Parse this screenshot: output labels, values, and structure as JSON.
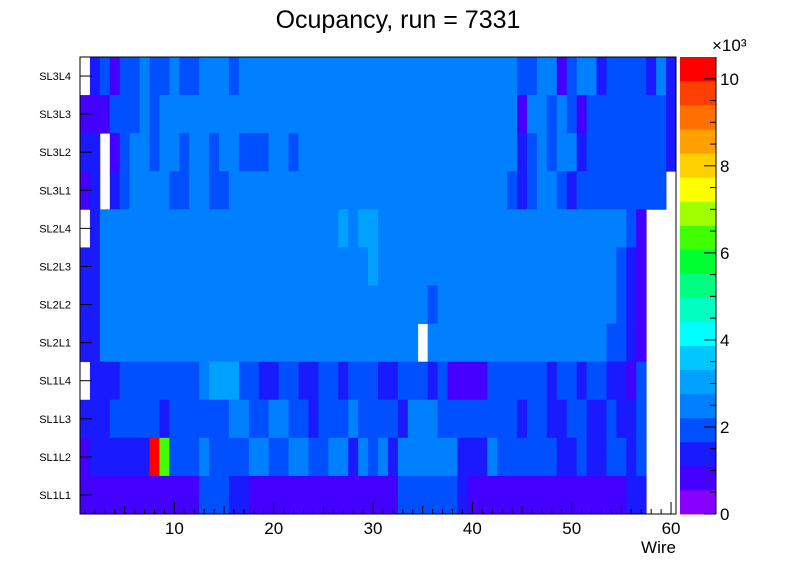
{
  "chart_data": {
    "type": "heatmap",
    "title": "Ocupancy, run = 7331",
    "xlabel": "Wire",
    "ylabel": "",
    "xlim": [
      0.5,
      60.5
    ],
    "x_ticks": [
      "10",
      "20",
      "30",
      "40",
      "50",
      "60"
    ],
    "y_categories": [
      "SL1L1",
      "SL1L2",
      "SL1L3",
      "SL1L4",
      "SL2L1",
      "SL2L2",
      "SL2L3",
      "SL2L4",
      "SL3L1",
      "SL3L2",
      "SL3L3",
      "SL3L4"
    ],
    "z_range": [
      0,
      10500
    ],
    "colorbar_ticks": [
      "0",
      "2",
      "4",
      "6",
      "8",
      "10"
    ],
    "colorbar_exponent": "×10³",
    "palette": [
      "#8800ff",
      "#4400ff",
      "#1a1aff",
      "#0050ff",
      "#0080ff",
      "#00a0ff",
      "#00c8ff",
      "#00ffff",
      "#00ffc0",
      "#00ff80",
      "#00ff30",
      "#40ff00",
      "#a0ff00",
      "#ffff00",
      "#ffd000",
      "#ffa000",
      "#ff7000",
      "#ff4000",
      "#ff0000"
    ],
    "rows": [
      {
        "label": "SL3L4",
        "runs": [
          [
            1,
            1,
            null
          ],
          [
            2,
            2,
            1200
          ],
          [
            3,
            3,
            1800
          ],
          [
            4,
            4,
            900
          ],
          [
            5,
            6,
            2000
          ],
          [
            7,
            7,
            2500
          ],
          [
            8,
            9,
            2000
          ],
          [
            10,
            10,
            2500
          ],
          [
            11,
            12,
            2000
          ],
          [
            13,
            15,
            2500
          ],
          [
            16,
            16,
            2000
          ],
          [
            17,
            44,
            2500
          ],
          [
            45,
            46,
            2000
          ],
          [
            47,
            48,
            2500
          ],
          [
            49,
            49,
            900
          ],
          [
            50,
            50,
            2000
          ],
          [
            51,
            52,
            2500
          ],
          [
            53,
            53,
            1500
          ],
          [
            54,
            57,
            2000
          ],
          [
            58,
            58,
            1500
          ],
          [
            59,
            59,
            2500
          ],
          [
            60,
            60,
            1200
          ]
        ]
      },
      {
        "label": "SL3L3",
        "runs": [
          [
            1,
            2,
            900
          ],
          [
            3,
            3,
            600
          ],
          [
            4,
            6,
            2000
          ],
          [
            7,
            7,
            2500
          ],
          [
            8,
            8,
            2000
          ],
          [
            9,
            44,
            2500
          ],
          [
            45,
            45,
            900
          ],
          [
            46,
            47,
            2500
          ],
          [
            48,
            48,
            2000
          ],
          [
            49,
            49,
            2500
          ],
          [
            50,
            50,
            2000
          ],
          [
            51,
            51,
            900
          ],
          [
            52,
            59,
            2000
          ],
          [
            60,
            60,
            1200
          ]
        ]
      },
      {
        "label": "SL3L2",
        "runs": [
          [
            1,
            1,
            1200
          ],
          [
            2,
            2,
            1500
          ],
          [
            3,
            3,
            null
          ],
          [
            4,
            4,
            900
          ],
          [
            5,
            5,
            2000
          ],
          [
            6,
            7,
            2500
          ],
          [
            8,
            8,
            2000
          ],
          [
            9,
            10,
            2500
          ],
          [
            11,
            11,
            2000
          ],
          [
            12,
            13,
            2500
          ],
          [
            14,
            14,
            2000
          ],
          [
            15,
            16,
            2500
          ],
          [
            17,
            19,
            2000
          ],
          [
            20,
            21,
            2500
          ],
          [
            22,
            22,
            2000
          ],
          [
            23,
            44,
            2500
          ],
          [
            45,
            45,
            1200
          ],
          [
            46,
            46,
            2000
          ],
          [
            47,
            47,
            2500
          ],
          [
            48,
            48,
            2000
          ],
          [
            49,
            50,
            2500
          ],
          [
            51,
            51,
            1500
          ],
          [
            52,
            59,
            2000
          ],
          [
            60,
            60,
            1200
          ]
        ]
      },
      {
        "label": "SL3L1",
        "runs": [
          [
            1,
            1,
            900
          ],
          [
            2,
            2,
            1500
          ],
          [
            3,
            3,
            null
          ],
          [
            4,
            4,
            1200
          ],
          [
            5,
            5,
            2000
          ],
          [
            6,
            9,
            2500
          ],
          [
            10,
            11,
            2000
          ],
          [
            12,
            13,
            2500
          ],
          [
            14,
            15,
            2000
          ],
          [
            16,
            43,
            2500
          ],
          [
            44,
            44,
            2000
          ],
          [
            45,
            45,
            1500
          ],
          [
            46,
            46,
            2000
          ],
          [
            47,
            48,
            2500
          ],
          [
            49,
            49,
            2000
          ],
          [
            50,
            50,
            1500
          ],
          [
            51,
            59,
            2000
          ],
          [
            60,
            60,
            null
          ]
        ]
      },
      {
        "label": "SL2L4",
        "runs": [
          [
            1,
            1,
            null
          ],
          [
            2,
            2,
            1500
          ],
          [
            3,
            26,
            2500
          ],
          [
            27,
            27,
            3000
          ],
          [
            28,
            28,
            2500
          ],
          [
            29,
            30,
            3000
          ],
          [
            31,
            55,
            2500
          ],
          [
            56,
            56,
            2000
          ],
          [
            57,
            57,
            900
          ],
          [
            58,
            60,
            null
          ]
        ]
      },
      {
        "label": "SL2L3",
        "runs": [
          [
            1,
            2,
            1500
          ],
          [
            3,
            29,
            2500
          ],
          [
            30,
            30,
            3000
          ],
          [
            31,
            54,
            2500
          ],
          [
            55,
            55,
            2000
          ],
          [
            56,
            56,
            1500
          ],
          [
            57,
            57,
            900
          ],
          [
            58,
            60,
            null
          ]
        ]
      },
      {
        "label": "SL2L2",
        "runs": [
          [
            1,
            1,
            1200
          ],
          [
            2,
            2,
            1500
          ],
          [
            3,
            35,
            2500
          ],
          [
            36,
            36,
            2000
          ],
          [
            37,
            54,
            2500
          ],
          [
            55,
            55,
            2000
          ],
          [
            56,
            56,
            1500
          ],
          [
            57,
            57,
            900
          ],
          [
            58,
            60,
            null
          ]
        ]
      },
      {
        "label": "SL2L1",
        "runs": [
          [
            1,
            1,
            1200
          ],
          [
            2,
            2,
            1500
          ],
          [
            3,
            34,
            2500
          ],
          [
            35,
            35,
            null
          ],
          [
            36,
            53,
            2500
          ],
          [
            54,
            55,
            2000
          ],
          [
            56,
            56,
            1500
          ],
          [
            57,
            57,
            900
          ],
          [
            58,
            60,
            null
          ]
        ]
      },
      {
        "label": "SL1L4",
        "runs": [
          [
            1,
            1,
            null
          ],
          [
            2,
            2,
            1200
          ],
          [
            3,
            4,
            1500
          ],
          [
            5,
            12,
            1800
          ],
          [
            13,
            13,
            2500
          ],
          [
            14,
            14,
            3200
          ],
          [
            15,
            16,
            3000
          ],
          [
            17,
            18,
            2000
          ],
          [
            19,
            20,
            1500
          ],
          [
            21,
            22,
            2000
          ],
          [
            23,
            24,
            1500
          ],
          [
            25,
            26,
            2000
          ],
          [
            27,
            27,
            1500
          ],
          [
            28,
            30,
            2000
          ],
          [
            31,
            32,
            1500
          ],
          [
            33,
            35,
            2000
          ],
          [
            36,
            36,
            1500
          ],
          [
            37,
            37,
            2000
          ],
          [
            38,
            41,
            900
          ],
          [
            42,
            47,
            2000
          ],
          [
            48,
            48,
            1500
          ],
          [
            49,
            50,
            2000
          ],
          [
            51,
            51,
            1500
          ],
          [
            52,
            53,
            2000
          ],
          [
            54,
            55,
            1500
          ],
          [
            56,
            56,
            900
          ],
          [
            57,
            57,
            2000
          ],
          [
            58,
            60,
            null
          ]
        ]
      },
      {
        "label": "SL1L3",
        "runs": [
          [
            1,
            1,
            1200
          ],
          [
            2,
            3,
            1500
          ],
          [
            4,
            8,
            2000
          ],
          [
            9,
            9,
            1500
          ],
          [
            10,
            15,
            2000
          ],
          [
            16,
            17,
            2500
          ],
          [
            18,
            19,
            2000
          ],
          [
            20,
            21,
            2500
          ],
          [
            22,
            23,
            2000
          ],
          [
            24,
            24,
            1500
          ],
          [
            25,
            27,
            2000
          ],
          [
            28,
            28,
            2500
          ],
          [
            29,
            32,
            2000
          ],
          [
            33,
            33,
            1500
          ],
          [
            34,
            36,
            2500
          ],
          [
            37,
            44,
            2000
          ],
          [
            45,
            45,
            1500
          ],
          [
            46,
            47,
            2000
          ],
          [
            48,
            49,
            1500
          ],
          [
            50,
            51,
            2000
          ],
          [
            52,
            53,
            1500
          ],
          [
            54,
            54,
            2000
          ],
          [
            55,
            56,
            1500
          ],
          [
            57,
            57,
            2000
          ],
          [
            58,
            60,
            null
          ]
        ]
      },
      {
        "label": "SL1L2",
        "runs": [
          [
            1,
            1,
            600
          ],
          [
            2,
            3,
            1200
          ],
          [
            4,
            7,
            1500
          ],
          [
            8,
            8,
            10500
          ],
          [
            9,
            9,
            6500
          ],
          [
            10,
            12,
            2000
          ],
          [
            13,
            13,
            2500
          ],
          [
            14,
            15,
            2000
          ],
          [
            16,
            17,
            1800
          ],
          [
            18,
            19,
            2500
          ],
          [
            20,
            20,
            1800
          ],
          [
            21,
            21,
            2000
          ],
          [
            22,
            23,
            2500
          ],
          [
            24,
            25,
            2000
          ],
          [
            26,
            27,
            2500
          ],
          [
            28,
            28,
            1500
          ],
          [
            29,
            29,
            2500
          ],
          [
            30,
            30,
            2000
          ],
          [
            31,
            31,
            2500
          ],
          [
            32,
            32,
            1500
          ],
          [
            33,
            38,
            2500
          ],
          [
            39,
            41,
            1500
          ],
          [
            42,
            42,
            2500
          ],
          [
            43,
            48,
            2000
          ],
          [
            49,
            50,
            1500
          ],
          [
            51,
            51,
            2000
          ],
          [
            52,
            53,
            1500
          ],
          [
            54,
            55,
            2000
          ],
          [
            56,
            56,
            1500
          ],
          [
            57,
            57,
            2000
          ],
          [
            58,
            60,
            null
          ]
        ]
      },
      {
        "label": "SL1L1",
        "runs": [
          [
            1,
            12,
            900
          ],
          [
            13,
            15,
            2000
          ],
          [
            16,
            17,
            1200
          ],
          [
            18,
            18,
            900
          ],
          [
            19,
            32,
            600
          ],
          [
            33,
            38,
            1800
          ],
          [
            39,
            39,
            1200
          ],
          [
            40,
            40,
            600
          ],
          [
            41,
            55,
            900
          ],
          [
            56,
            56,
            1200
          ],
          [
            57,
            57,
            1500
          ],
          [
            58,
            60,
            null
          ]
        ]
      }
    ]
  }
}
